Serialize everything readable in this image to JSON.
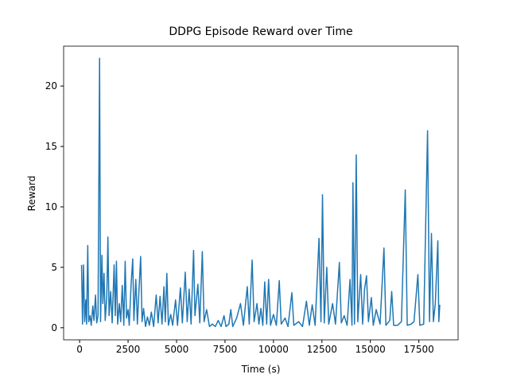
{
  "chart_data": {
    "type": "line",
    "title": "DDPG Episode Reward over Time",
    "xlabel": "Time (s)",
    "ylabel": "Reward",
    "x": [
      100,
      150,
      200,
      260,
      320,
      360,
      420,
      470,
      540,
      600,
      680,
      740,
      820,
      880,
      950,
      1030,
      1080,
      1150,
      1200,
      1260,
      1320,
      1400,
      1460,
      1520,
      1600,
      1680,
      1780,
      1840,
      1900,
      1960,
      2050,
      2120,
      2200,
      2280,
      2350,
      2420,
      2500,
      2560,
      2660,
      2740,
      2800,
      2900,
      2980,
      3050,
      3150,
      3220,
      3300,
      3400,
      3500,
      3600,
      3700,
      3820,
      3950,
      4050,
      4150,
      4250,
      4350,
      4420,
      4500,
      4580,
      4700,
      4800,
      4950,
      5050,
      5200,
      5300,
      5450,
      5550,
      5650,
      5750,
      5880,
      5950,
      6100,
      6200,
      6330,
      6420,
      6550,
      6700,
      6850,
      7000,
      7150,
      7300,
      7450,
      7550,
      7700,
      7800,
      7900,
      8100,
      8300,
      8450,
      8650,
      8750,
      8900,
      9000,
      9150,
      9250,
      9350,
      9450,
      9550,
      9650,
      9750,
      9850,
      10000,
      10150,
      10300,
      10400,
      10600,
      10750,
      10950,
      11050,
      11300,
      11500,
      11700,
      11850,
      12000,
      12150,
      12350,
      12450,
      12530,
      12620,
      12750,
      12850,
      13050,
      13200,
      13400,
      13500,
      13650,
      13800,
      13950,
      14050,
      14100,
      14180,
      14270,
      14350,
      14500,
      14600,
      14700,
      14800,
      14900,
      15050,
      15150,
      15300,
      15500,
      15700,
      15800,
      16000,
      16100,
      16200,
      16400,
      16600,
      16800,
      16900,
      17100,
      17250,
      17450,
      17550,
      17750,
      17950,
      18050,
      18150,
      18250,
      18350,
      18480,
      18530,
      18580
    ],
    "series": [
      {
        "name": "Reward",
        "color": "#1f77b4",
        "values": [
          5.2,
          0.3,
          5.2,
          0.5,
          2.3,
          0.3,
          6.8,
          0.5,
          1.0,
          0.2,
          1.8,
          0.6,
          2.7,
          0.4,
          1.0,
          22.3,
          0.5,
          6.0,
          2.0,
          4.5,
          0.6,
          2.5,
          7.5,
          1.0,
          3.0,
          0.4,
          5.2,
          1.0,
          5.5,
          0.3,
          2.0,
          0.5,
          3.5,
          0.2,
          5.5,
          0.8,
          1.5,
          0.2,
          3.7,
          5.7,
          0.6,
          4.0,
          0.3,
          2.7,
          5.9,
          0.5,
          1.6,
          0.1,
          0.9,
          0.2,
          1.3,
          0.1,
          2.7,
          0.4,
          2.6,
          0.3,
          3.4,
          0.5,
          4.5,
          0.2,
          1.1,
          0.2,
          2.3,
          0.2,
          3.3,
          0.4,
          4.6,
          0.5,
          3.2,
          0.3,
          6.4,
          1.0,
          3.6,
          0.4,
          6.3,
          0.5,
          1.5,
          0.1,
          0.3,
          0.1,
          0.6,
          0.1,
          1.0,
          0.1,
          0.3,
          1.5,
          0.1,
          0.8,
          2.0,
          0.2,
          3.4,
          0.3,
          5.6,
          0.5,
          2.0,
          0.3,
          1.6,
          0.2,
          3.8,
          0.3,
          4.0,
          0.2,
          1.1,
          0.2,
          3.9,
          0.3,
          0.8,
          0.1,
          2.9,
          0.2,
          0.5,
          0.1,
          2.2,
          0.2,
          1.9,
          0.2,
          7.4,
          0.5,
          11.0,
          0.4,
          5.0,
          0.3,
          2.0,
          0.3,
          5.4,
          0.4,
          1.0,
          0.2,
          4.0,
          0.2,
          12.0,
          0.3,
          14.3,
          0.5,
          4.4,
          0.3,
          3.2,
          4.3,
          0.5,
          2.5,
          0.2,
          1.5,
          0.3,
          6.6,
          0.2,
          0.6,
          3.0,
          0.2,
          0.2,
          0.5,
          11.4,
          0.2,
          0.3,
          0.5,
          4.4,
          0.2,
          0.3,
          16.3,
          0.5,
          7.8,
          0.5,
          2.0,
          7.2,
          0.5,
          1.9
        ]
      }
    ],
    "xlim": [
      -825,
      19525
    ],
    "ylim": [
      -1.0,
      23.3
    ],
    "xticks": [
      0,
      2500,
      5000,
      7500,
      10000,
      12500,
      15000,
      17500
    ],
    "yticks": [
      0,
      5,
      10,
      15,
      20
    ]
  }
}
